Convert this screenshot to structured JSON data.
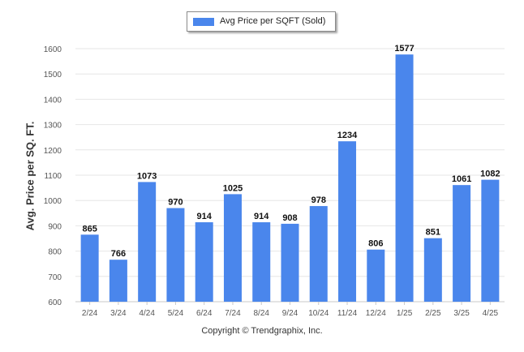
{
  "legend": {
    "label": "Avg Price per SQFT (Sold)"
  },
  "footer": {
    "copyright": "Copyright © Trendgraphix, Inc."
  },
  "colors": {
    "bar": "#4a86ec",
    "grid": "#e6e6e6",
    "axis_text": "#555555",
    "label_text": "#111111"
  },
  "chart_data": {
    "type": "bar",
    "title": "",
    "xlabel": "",
    "ylabel": "Avg. Price per SQ. FT.",
    "categories": [
      "2/24",
      "3/24",
      "4/24",
      "5/24",
      "6/24",
      "7/24",
      "8/24",
      "9/24",
      "10/24",
      "11/24",
      "12/24",
      "1/25",
      "2/25",
      "3/25",
      "4/25"
    ],
    "series": [
      {
        "name": "Avg Price per SQFT (Sold)",
        "values": [
          865,
          766,
          1073,
          970,
          914,
          1025,
          914,
          908,
          978,
          1234,
          806,
          1577,
          851,
          1061,
          1082
        ]
      }
    ],
    "ylim": [
      600,
      1600
    ],
    "yticks": [
      600,
      700,
      800,
      900,
      1000,
      1100,
      1200,
      1300,
      1400,
      1500,
      1600
    ],
    "grid": true,
    "legend_position": "top-center",
    "data_labels": true
  }
}
